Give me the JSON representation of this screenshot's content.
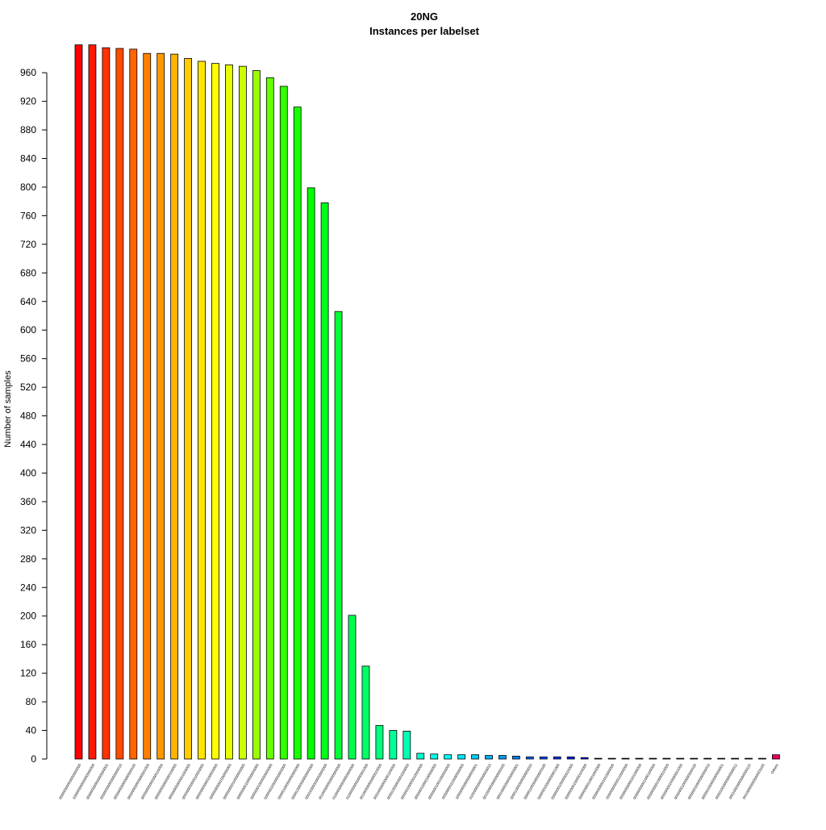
{
  "chart_data": {
    "type": "bar",
    "title": "20NG",
    "subtitle": "Instances per labelset",
    "xlabel": "",
    "ylabel": "Number of samples",
    "ylim": [
      0,
      1000
    ],
    "yticks": [
      0,
      40,
      80,
      120,
      160,
      200,
      240,
      280,
      320,
      360,
      400,
      440,
      480,
      520,
      560,
      600,
      640,
      680,
      720,
      760,
      800,
      840,
      880,
      920,
      960
    ],
    "grid": false,
    "legend": "none",
    "categories": [
      "00000000000000000000",
      "10000000000000000000",
      "00000000000000000001",
      "00000000000000000010",
      "00000000000000000100",
      "00000000000000001000",
      "00000000000000010000",
      "00000000000000100000",
      "00000000000001000000",
      "00000000000010000000",
      "00000000000100000000",
      "00000000001000000000",
      "00000000010000000000",
      "00000000100000000000",
      "00000001000000000000",
      "00000010000000000000",
      "00000100000000000000",
      "00001000000000000000",
      "00010000000000000000",
      "00100000000000000000",
      "01000000000000000000",
      "01000000000000001000",
      "00100000000000010000",
      "00010000000000100000",
      "00001000000001000000",
      "00000100000010000000",
      "00000010000100000000",
      "00000001001000000000",
      "00000000110000000000",
      "10000000000000000001",
      "01000000000000000010",
      "00100000000000000100",
      "00010000000000000001",
      "00001000000000000010",
      "00000100000000000100",
      "00000010000000001000",
      "00000001000000010000",
      "00000000100000100000",
      "00000000010001000000",
      "00000000001010000000",
      "00000000000110000000",
      "00000000000101000000",
      "00000000001000100000",
      "00000000010000010000",
      "00000000100000001000",
      "00000001000000000100",
      "00000010000000000010",
      "00000100000000000001",
      "00001000000000000011",
      "00010000000000000110",
      "00100000000000001100",
      "Others"
    ],
    "values": [
      999,
      999,
      995,
      994,
      993,
      987,
      987,
      986,
      980,
      976,
      973,
      971,
      969,
      963,
      953,
      941,
      912,
      799,
      778,
      626,
      201,
      130,
      47,
      40,
      39,
      8,
      7,
      6,
      6,
      6,
      5,
      5,
      4,
      3,
      3,
      3,
      3,
      2,
      1,
      1,
      1,
      1,
      1,
      1,
      1,
      1,
      1,
      1,
      1,
      1,
      1,
      6
    ],
    "colors": [
      "#ff0000",
      "#ff1a00",
      "#ff3300",
      "#ff4d00",
      "#ff6600",
      "#ff8000",
      "#ff9900",
      "#ffb300",
      "#ffcc00",
      "#ffe600",
      "#ffff00",
      "#e6ff00",
      "#ccff00",
      "#99ff00",
      "#66ff00",
      "#33ff00",
      "#1aff00",
      "#00ff00",
      "#00ff1a",
      "#00ff33",
      "#00ff4d",
      "#00ff66",
      "#00ff80",
      "#00ff99",
      "#00ffb3",
      "#00ffcc",
      "#00ffe6",
      "#00ffff",
      "#00e6ff",
      "#00ccff",
      "#00b3ff",
      "#0099ff",
      "#0080ff",
      "#0066ff",
      "#004dff",
      "#0033ff",
      "#001aff",
      "#0000ff",
      "#1a00ff",
      "#3300ff",
      "#4d00ff",
      "#6600ff",
      "#8000ff",
      "#9900ff",
      "#b300ff",
      "#cc00ff",
      "#e600ff",
      "#ff00ff",
      "#ff00cc",
      "#ff0099",
      "#ff0066",
      "#e6005c"
    ]
  }
}
